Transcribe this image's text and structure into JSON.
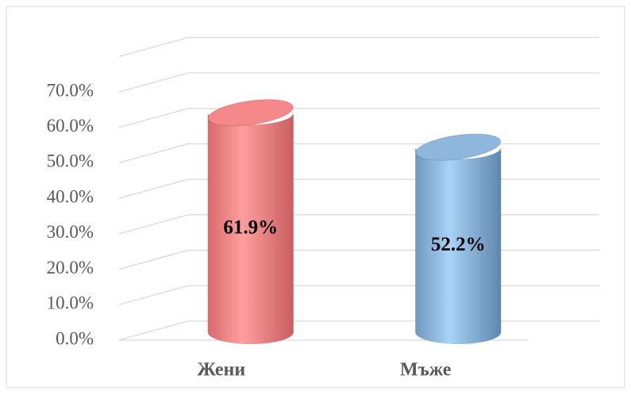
{
  "chart_data": {
    "type": "bar3d",
    "categories": [
      "Жени",
      "Мъже"
    ],
    "values": [
      61.9,
      52.2
    ],
    "value_labels": [
      "61.9%",
      "52.2%"
    ],
    "colors": [
      "#f4888a",
      "#8fb7de"
    ],
    "ylim": [
      0,
      80
    ],
    "yticks": [
      {
        "value": 0,
        "label": "0.0%"
      },
      {
        "value": 10,
        "label": "10.0%"
      },
      {
        "value": 20,
        "label": "20.0%"
      },
      {
        "value": 30,
        "label": "30.0%"
      },
      {
        "value": 40,
        "label": "40.0%"
      },
      {
        "value": 50,
        "label": "50.0%"
      },
      {
        "value": 60,
        "label": "60.0%"
      },
      {
        "value": 70,
        "label": "70.0%"
      }
    ],
    "grid": true
  }
}
